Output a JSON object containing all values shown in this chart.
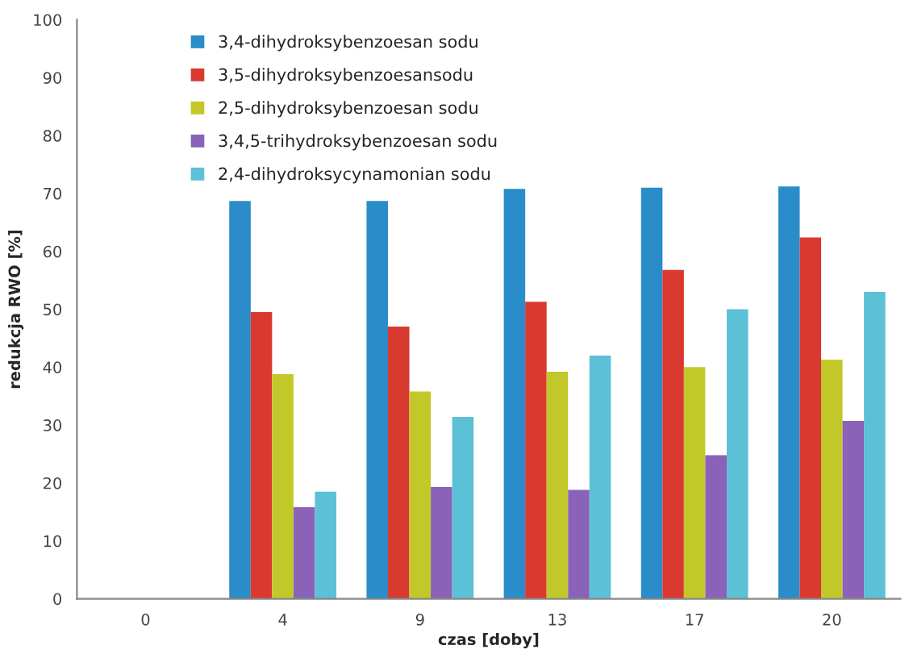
{
  "chart_data": {
    "type": "bar",
    "xlabel": "czas [doby]",
    "ylabel": "redukcja RWO [%]",
    "categories": [
      "0",
      "4",
      "9",
      "13",
      "17",
      "20"
    ],
    "series": [
      {
        "name": "3,4-dihydroksybenzoesan sodu",
        "color": "#2a8cc8",
        "values": [
          null,
          68.7,
          68.7,
          70.8,
          71.0,
          71.2
        ]
      },
      {
        "name": "3,5-dihydroksybenzoesansodu",
        "color": "#d9392f",
        "values": [
          null,
          49.5,
          47.0,
          51.3,
          56.8,
          62.4
        ]
      },
      {
        "name": "2,5-dihydroksybenzoesan sodu",
        "color": "#c3c82a",
        "values": [
          null,
          38.8,
          35.8,
          39.2,
          40.0,
          41.3
        ]
      },
      {
        "name": "3,4,5-trihydroksybenzoesan sodu",
        "color": "#8a62b8",
        "values": [
          null,
          15.8,
          19.3,
          18.8,
          24.8,
          30.7
        ]
      },
      {
        "name": "2,4-dihydroksycynamonian sodu",
        "color": "#5cc0d6",
        "values": [
          null,
          18.5,
          31.4,
          42.0,
          50.0,
          53.0
        ]
      }
    ],
    "ylim": [
      0,
      100
    ],
    "yticks": [
      0,
      10,
      20,
      30,
      40,
      50,
      60,
      70,
      80,
      90,
      100
    ],
    "grid": false,
    "legend": "top left"
  }
}
